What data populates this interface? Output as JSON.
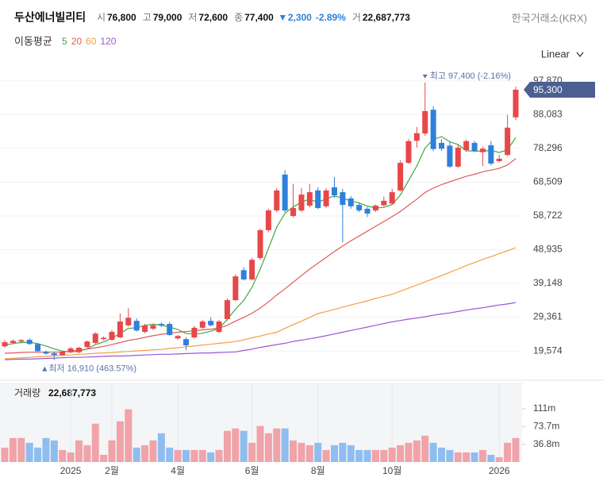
{
  "chart_data": {
    "type": "candlestick",
    "title": "두산에너빌리티",
    "exchange": "한국거래소(KRX)",
    "header": {
      "items": [
        {
          "label": "시",
          "value": "76,800"
        },
        {
          "label": "고",
          "value": "79,000"
        },
        {
          "label": "저",
          "value": "72,600"
        },
        {
          "label": "종",
          "value": "77,400"
        }
      ],
      "change": {
        "value": "2,300",
        "pct": "-2.89%"
      },
      "volume": {
        "label": "거",
        "value": "22,687,773"
      }
    },
    "scale_label": "Linear",
    "up_color": "#e8474a",
    "down_color": "#2f80dc",
    "categories": [
      null,
      null,
      null,
      null,
      null,
      null,
      null,
      null,
      "2025",
      null,
      null,
      null,
      null,
      "2월",
      null,
      null,
      null,
      null,
      null,
      null,
      null,
      "4월",
      null,
      null,
      null,
      null,
      null,
      null,
      null,
      null,
      "6월",
      null,
      null,
      null,
      null,
      null,
      null,
      null,
      "8월",
      null,
      null,
      null,
      null,
      null,
      null,
      null,
      null,
      "10월",
      null,
      null,
      null,
      null,
      null,
      null,
      null,
      null,
      null,
      null,
      null,
      null,
      "2026",
      null,
      null
    ],
    "open": [
      20900,
      21900,
      22300,
      22800,
      21600,
      19400,
      18900,
      18400,
      19200,
      19200,
      20700,
      21900,
      23000,
      22800,
      23500,
      27000,
      28300,
      25100,
      26000,
      27400,
      27400,
      23200,
      23000,
      23500,
      26300,
      28300,
      25100,
      28800,
      34300,
      43000,
      40300,
      46500,
      54600,
      60300,
      70700,
      58700,
      60300,
      61700,
      66100,
      61500,
      67000,
      65600,
      63800,
      61900,
      60800,
      60300,
      61800,
      62300,
      66100,
      74100,
      80500,
      82600,
      89500,
      79900,
      79100,
      73000,
      77800,
      79900,
      77200,
      79200,
      74600,
      76400,
      87300
    ],
    "high": [
      22700,
      22900,
      23000,
      23200,
      21900,
      19700,
      19400,
      19600,
      20700,
      20800,
      22600,
      25000,
      23800,
      25600,
      30400,
      32000,
      29000,
      27400,
      27500,
      27900,
      28000,
      24200,
      23600,
      26800,
      28600,
      29300,
      28600,
      34800,
      41800,
      43800,
      46600,
      55000,
      60800,
      66800,
      72000,
      68000,
      66800,
      68000,
      67000,
      66800,
      70000,
      66600,
      64500,
      62500,
      61300,
      62000,
      64300,
      66600,
      74800,
      81000,
      84500,
      97400,
      90500,
      81000,
      80200,
      79500,
      80800,
      80500,
      78800,
      80400,
      76400,
      88000,
      96200
    ],
    "low": [
      20500,
      21500,
      21800,
      21300,
      19300,
      18500,
      16910,
      18100,
      18900,
      18900,
      20400,
      21600,
      22600,
      22500,
      23200,
      26600,
      25200,
      24700,
      25600,
      26500,
      24000,
      22800,
      19800,
      23200,
      26000,
      26700,
      24800,
      28400,
      34000,
      40000,
      40000,
      46000,
      54000,
      59800,
      59800,
      58200,
      59800,
      61200,
      60700,
      61000,
      64000,
      51100,
      60800,
      59800,
      58400,
      59900,
      61500,
      62000,
      65800,
      73800,
      78500,
      82000,
      77500,
      77600,
      72600,
      72600,
      77300,
      77200,
      73200,
      73400,
      74200,
      76000,
      86500
    ],
    "close": [
      22100,
      22500,
      22700,
      21600,
      19500,
      18800,
      18400,
      19300,
      20300,
      20500,
      22300,
      24600,
      23400,
      25100,
      28100,
      29200,
      25500,
      26900,
      27000,
      26900,
      24200,
      23900,
      21200,
      26300,
      28100,
      27000,
      28100,
      34300,
      41200,
      40300,
      46000,
      54600,
      60300,
      66100,
      60300,
      61000,
      64900,
      65600,
      61000,
      66100,
      64700,
      61900,
      61500,
      60300,
      59400,
      61700,
      63100,
      65600,
      74100,
      80400,
      82700,
      89100,
      78100,
      78200,
      73000,
      78500,
      80400,
      77600,
      78200,
      73900,
      75300,
      84300,
      95300
    ],
    "last_label": "95,300",
    "high_marker": "최고 97,400 (-2.16%)",
    "low_marker": "최저 16,910 (463.57%)",
    "ylim": [
      14300,
      100600
    ],
    "yticks": [
      {
        "value": 97870,
        "label": "97,870"
      },
      {
        "value": 88083,
        "label": "88,083"
      },
      {
        "value": 78296,
        "label": "78,296"
      },
      {
        "value": 68509,
        "label": "68,509"
      },
      {
        "value": 58722,
        "label": "58,722"
      },
      {
        "value": 48935,
        "label": "48,935"
      },
      {
        "value": 39148,
        "label": "39,148"
      },
      {
        "value": 29361,
        "label": "29,361"
      },
      {
        "value": 19574,
        "label": "19,574"
      }
    ],
    "ma": {
      "title": "이동평균",
      "series": [
        {
          "name": "5",
          "color": "#43a843",
          "values": [
            21300,
            21700,
            22000,
            22100,
            21700,
            21000,
            20200,
            19500,
            19300,
            19500,
            20200,
            21400,
            22200,
            23200,
            24700,
            26100,
            26300,
            27000,
            27300,
            27100,
            26500,
            25800,
            24600,
            24500,
            24700,
            25300,
            26100,
            28700,
            31700,
            34200,
            38000,
            43300,
            49300,
            55500,
            59500,
            61300,
            62700,
            63600,
            62600,
            63700,
            64500,
            63900,
            63000,
            62500,
            61600,
            61000,
            61200,
            62000,
            64800,
            69000,
            73200,
            78400,
            80900,
            81700,
            80200,
            79400,
            77600,
            77500,
            77500,
            77700,
            77100,
            77900,
            81400
          ]
        },
        {
          "name": "20",
          "color": "#e25a5a",
          "values": [
            18900,
            19000,
            19100,
            19200,
            19200,
            19200,
            19200,
            19300,
            19500,
            19800,
            20100,
            20500,
            20900,
            21400,
            22000,
            22600,
            23000,
            23500,
            24000,
            24400,
            24700,
            25000,
            25200,
            25400,
            25700,
            25900,
            26200,
            27000,
            28200,
            29300,
            30500,
            32000,
            33800,
            35800,
            37600,
            39500,
            41400,
            43300,
            45000,
            46700,
            48400,
            50000,
            51500,
            52900,
            54300,
            55700,
            57100,
            58500,
            60000,
            61800,
            63600,
            65500,
            66800,
            67800,
            68600,
            69400,
            70200,
            70800,
            71500,
            72000,
            72500,
            73500,
            75300
          ]
        },
        {
          "name": "60",
          "color": "#f0a040",
          "values": [
            17300,
            17400,
            17600,
            17700,
            17900,
            18000,
            18200,
            18300,
            18400,
            18600,
            18700,
            18900,
            19000,
            19100,
            19300,
            19400,
            19600,
            19700,
            19900,
            20000,
            20300,
            20500,
            20800,
            21000,
            21300,
            21500,
            21800,
            22000,
            22300,
            22800,
            23400,
            23900,
            24500,
            25000,
            26100,
            27200,
            28200,
            29300,
            30400,
            31000,
            31600,
            32300,
            32900,
            33500,
            34100,
            34800,
            35400,
            36000,
            36900,
            37800,
            38700,
            39600,
            40500,
            41400,
            42400,
            43300,
            44300,
            45200,
            46100,
            46900,
            47800,
            48600,
            49500
          ]
        },
        {
          "name": "120",
          "color": "#9a55d8",
          "values": [
            17000,
            17100,
            17200,
            17200,
            17300,
            17400,
            17500,
            17600,
            17700,
            17700,
            17800,
            17900,
            18000,
            18100,
            18100,
            18200,
            18300,
            18400,
            18500,
            18600,
            18600,
            18700,
            18800,
            18900,
            19000,
            19000,
            19100,
            19200,
            19300,
            19700,
            20100,
            20600,
            21000,
            21400,
            21800,
            22300,
            22700,
            23100,
            23500,
            24000,
            24500,
            25000,
            25500,
            26000,
            26500,
            27000,
            27500,
            28000,
            28400,
            28800,
            29100,
            29500,
            29900,
            30300,
            30600,
            31000,
            31400,
            31800,
            32100,
            32500,
            32900,
            33200,
            33600
          ]
        }
      ]
    },
    "volume": {
      "title": "거래량",
      "total": "22,687,773",
      "up_color": "#f0a3a8",
      "down_color": "#8fbdf0",
      "values": [
        30000000,
        50000000,
        50000000,
        40000000,
        30000000,
        50000000,
        45000000,
        25000000,
        20000000,
        45000000,
        35000000,
        80000000,
        15000000,
        45000000,
        85000000,
        110000000,
        30000000,
        35000000,
        45000000,
        60000000,
        30000000,
        25000000,
        25000000,
        25000000,
        25000000,
        20000000,
        25000000,
        65000000,
        70000000,
        65000000,
        40000000,
        75000000,
        60000000,
        70000000,
        70000000,
        45000000,
        40000000,
        35000000,
        40000000,
        25000000,
        35000000,
        40000000,
        35000000,
        25000000,
        25000000,
        25000000,
        25000000,
        30000000,
        35000000,
        40000000,
        45000000,
        55000000,
        40000000,
        30000000,
        25000000,
        20000000,
        20000000,
        20000000,
        25000000,
        15000000,
        10000000,
        40000000,
        50000000
      ],
      "vlim": [
        0,
        165600000
      ],
      "vticks": [
        {
          "value": 111000000,
          "label": "111m"
        },
        {
          "value": 73700000,
          "label": "73.7m"
        },
        {
          "value": 36800000,
          "label": "36.8m"
        }
      ]
    }
  }
}
